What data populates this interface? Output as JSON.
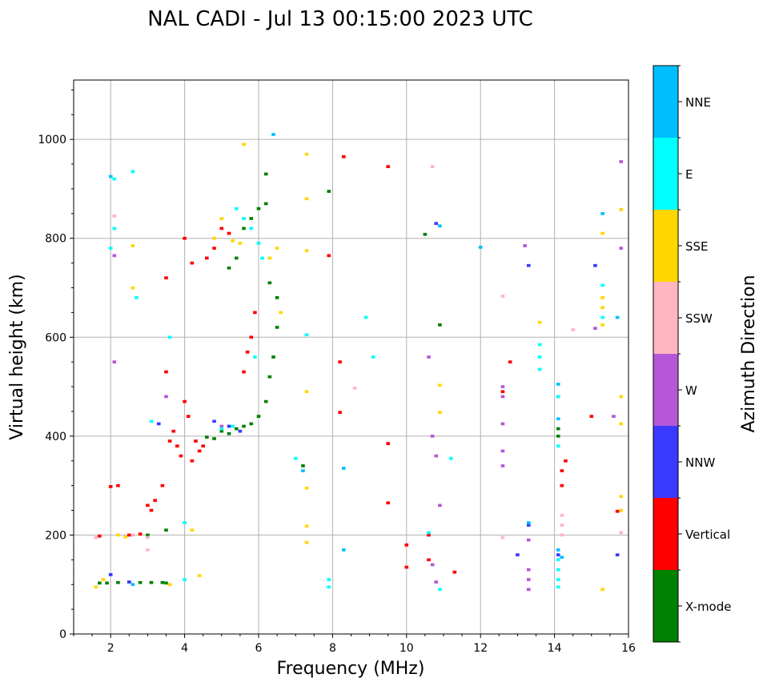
{
  "chart_data": {
    "type": "scatter",
    "title": "NAL CADI - Jul 13 00:15:00 2023 UTC",
    "xlabel": "Frequency (MHz)",
    "ylabel": "Virtual height (km)",
    "xlim": [
      1,
      16
    ],
    "ylim": [
      0,
      1120
    ],
    "xticks": [
      2,
      4,
      6,
      8,
      10,
      12,
      14,
      16
    ],
    "yticks": [
      0,
      200,
      400,
      600,
      800,
      1000
    ],
    "grid": true,
    "colorbar": {
      "title": "Azimuth Direction",
      "categories": [
        {
          "name": "X-mode",
          "color": "#008000"
        },
        {
          "name": "Vertical",
          "color": "#ff0000"
        },
        {
          "name": "NNW",
          "color": "#3a3aff"
        },
        {
          "name": "W",
          "color": "#b557d6"
        },
        {
          "name": "SSW",
          "color": "#ffb6c1"
        },
        {
          "name": "SSE",
          "color": "#ffd700"
        },
        {
          "name": "E",
          "color": "#00ffff"
        },
        {
          "name": "NNE",
          "color": "#00bfff"
        }
      ]
    },
    "series": [
      {
        "name": "X-mode",
        "points": [
          [
            1.7,
            103
          ],
          [
            1.9,
            103
          ],
          [
            2.2,
            104
          ],
          [
            2.5,
            105
          ],
          [
            2.8,
            104
          ],
          [
            3.1,
            104
          ],
          [
            3.4,
            104
          ],
          [
            3.5,
            103
          ],
          [
            3.0,
            200
          ],
          [
            3.5,
            210
          ],
          [
            4.6,
            398
          ],
          [
            4.8,
            395
          ],
          [
            5.0,
            410
          ],
          [
            5.2,
            405
          ],
          [
            5.4,
            415
          ],
          [
            5.6,
            420
          ],
          [
            5.8,
            425
          ],
          [
            6.0,
            440
          ],
          [
            6.2,
            470
          ],
          [
            6.3,
            520
          ],
          [
            6.4,
            560
          ],
          [
            6.5,
            620
          ],
          [
            6.5,
            680
          ],
          [
            6.3,
            710
          ],
          [
            6.2,
            870
          ],
          [
            6.2,
            930
          ],
          [
            6.0,
            860
          ],
          [
            5.8,
            840
          ],
          [
            5.6,
            820
          ],
          [
            5.4,
            760
          ],
          [
            5.2,
            740
          ],
          [
            7.2,
            340
          ],
          [
            7.9,
            895
          ],
          [
            10.5,
            808
          ],
          [
            10.9,
            625
          ],
          [
            14.1,
            400
          ],
          [
            14.1,
            415
          ]
        ]
      },
      {
        "name": "Vertical",
        "points": [
          [
            1.7,
            198
          ],
          [
            2.0,
            298
          ],
          [
            2.2,
            300
          ],
          [
            2.5,
            200
          ],
          [
            2.8,
            202
          ],
          [
            3.0,
            260
          ],
          [
            3.1,
            250
          ],
          [
            3.2,
            270
          ],
          [
            3.4,
            300
          ],
          [
            3.5,
            530
          ],
          [
            3.5,
            720
          ],
          [
            3.6,
            390
          ],
          [
            3.7,
            410
          ],
          [
            3.8,
            380
          ],
          [
            3.9,
            360
          ],
          [
            4.0,
            470
          ],
          [
            4.1,
            440
          ],
          [
            4.2,
            350
          ],
          [
            4.3,
            390
          ],
          [
            4.4,
            370
          ],
          [
            4.5,
            380
          ],
          [
            4.6,
            760
          ],
          [
            4.8,
            780
          ],
          [
            4.2,
            750
          ],
          [
            4.0,
            800
          ],
          [
            5.0,
            820
          ],
          [
            5.2,
            810
          ],
          [
            5.6,
            530
          ],
          [
            5.7,
            570
          ],
          [
            5.8,
            600
          ],
          [
            5.9,
            650
          ],
          [
            8.2,
            550
          ],
          [
            8.2,
            448
          ],
          [
            8.3,
            965
          ],
          [
            7.9,
            765
          ],
          [
            9.5,
            945
          ],
          [
            9.5,
            265
          ],
          [
            9.5,
            385
          ],
          [
            10.0,
            180
          ],
          [
            10.0,
            135
          ],
          [
            10.6,
            200
          ],
          [
            10.6,
            150
          ],
          [
            11.3,
            125
          ],
          [
            12.8,
            550
          ],
          [
            12.6,
            490
          ],
          [
            14.1,
            480
          ],
          [
            14.2,
            300
          ],
          [
            14.2,
            330
          ],
          [
            14.3,
            350
          ],
          [
            15.0,
            440
          ],
          [
            15.7,
            248
          ]
        ]
      },
      {
        "name": "NNW",
        "points": [
          [
            2.0,
            120
          ],
          [
            2.5,
            105
          ],
          [
            3.3,
            425
          ],
          [
            4.8,
            430
          ],
          [
            5.2,
            420
          ],
          [
            5.5,
            410
          ],
          [
            10.8,
            830
          ],
          [
            13.3,
            745
          ],
          [
            13.0,
            160
          ],
          [
            13.3,
            220
          ],
          [
            14.1,
            160
          ],
          [
            15.7,
            160
          ],
          [
            15.1,
            745
          ]
        ]
      },
      {
        "name": "W",
        "points": [
          [
            2.1,
            765
          ],
          [
            2.1,
            550
          ],
          [
            3.5,
            480
          ],
          [
            5.0,
            420
          ],
          [
            10.6,
            560
          ],
          [
            10.7,
            400
          ],
          [
            10.8,
            360
          ],
          [
            10.9,
            260
          ],
          [
            10.7,
            140
          ],
          [
            10.8,
            105
          ],
          [
            12.6,
            500
          ],
          [
            12.6,
            480
          ],
          [
            12.6,
            370
          ],
          [
            12.6,
            340
          ],
          [
            12.6,
            425
          ],
          [
            13.2,
            785
          ],
          [
            13.3,
            190
          ],
          [
            13.3,
            130
          ],
          [
            13.3,
            110
          ],
          [
            13.3,
            90
          ],
          [
            15.1,
            618
          ],
          [
            15.6,
            440
          ],
          [
            15.8,
            955
          ],
          [
            15.8,
            780
          ]
        ]
      },
      {
        "name": "SSW",
        "points": [
          [
            1.6,
            195
          ],
          [
            2.1,
            845
          ],
          [
            2.1,
            820
          ],
          [
            2.6,
            200
          ],
          [
            3.0,
            195
          ],
          [
            3.0,
            170
          ],
          [
            8.6,
            497
          ],
          [
            10.7,
            945
          ],
          [
            12.6,
            683
          ],
          [
            12.6,
            195
          ],
          [
            14.2,
            240
          ],
          [
            14.2,
            220
          ],
          [
            14.2,
            200
          ],
          [
            14.5,
            615
          ],
          [
            15.8,
            205
          ]
        ]
      },
      {
        "name": "SSE",
        "points": [
          [
            1.6,
            95
          ],
          [
            1.8,
            110
          ],
          [
            2.2,
            200
          ],
          [
            2.4,
            196
          ],
          [
            2.6,
            785
          ],
          [
            2.6,
            700
          ],
          [
            3.6,
            100
          ],
          [
            4.2,
            210
          ],
          [
            4.4,
            118
          ],
          [
            4.8,
            800
          ],
          [
            5.0,
            840
          ],
          [
            5.3,
            795
          ],
          [
            5.5,
            790
          ],
          [
            5.6,
            990
          ],
          [
            6.3,
            760
          ],
          [
            6.5,
            780
          ],
          [
            6.6,
            650
          ],
          [
            7.3,
            970
          ],
          [
            7.3,
            880
          ],
          [
            7.3,
            775
          ],
          [
            7.3,
            490
          ],
          [
            7.3,
            295
          ],
          [
            7.3,
            218
          ],
          [
            7.3,
            185
          ],
          [
            10.9,
            503
          ],
          [
            10.9,
            448
          ],
          [
            13.6,
            630
          ],
          [
            15.3,
            810
          ],
          [
            15.3,
            680
          ],
          [
            15.3,
            660
          ],
          [
            15.3,
            625
          ],
          [
            15.3,
            90
          ],
          [
            15.8,
            858
          ],
          [
            15.8,
            480
          ],
          [
            15.8,
            425
          ],
          [
            15.8,
            278
          ],
          [
            15.8,
            250
          ]
        ]
      },
      {
        "name": "E",
        "points": [
          [
            2.1,
            920
          ],
          [
            2.6,
            935
          ],
          [
            2.7,
            680
          ],
          [
            2.1,
            820
          ],
          [
            2.0,
            780
          ],
          [
            3.1,
            430
          ],
          [
            3.6,
            600
          ],
          [
            4.0,
            225
          ],
          [
            4.0,
            110
          ],
          [
            5.4,
            860
          ],
          [
            5.6,
            840
          ],
          [
            5.8,
            820
          ],
          [
            6.0,
            790
          ],
          [
            6.1,
            760
          ],
          [
            5.9,
            560
          ],
          [
            5.0,
            415
          ],
          [
            5.3,
            420
          ],
          [
            7.3,
            605
          ],
          [
            7.0,
            355
          ],
          [
            7.9,
            110
          ],
          [
            7.9,
            95
          ],
          [
            8.9,
            640
          ],
          [
            9.1,
            560
          ],
          [
            10.6,
            205
          ],
          [
            10.9,
            90
          ],
          [
            11.2,
            355
          ],
          [
            13.6,
            585
          ],
          [
            13.6,
            560
          ],
          [
            13.6,
            535
          ],
          [
            14.1,
            480
          ],
          [
            14.1,
            380
          ],
          [
            14.1,
            150
          ],
          [
            14.1,
            130
          ],
          [
            14.1,
            110
          ],
          [
            14.1,
            95
          ],
          [
            15.3,
            705
          ],
          [
            15.3,
            640
          ]
        ]
      },
      {
        "name": "NNE",
        "points": [
          [
            2.0,
            925
          ],
          [
            2.6,
            100
          ],
          [
            6.4,
            1010
          ],
          [
            7.2,
            330
          ],
          [
            8.3,
            335
          ],
          [
            8.3,
            170
          ],
          [
            10.9,
            825
          ],
          [
            12.0,
            782
          ],
          [
            13.3,
            225
          ],
          [
            14.1,
            505
          ],
          [
            14.1,
            435
          ],
          [
            14.1,
            170
          ],
          [
            14.2,
            155
          ],
          [
            15.3,
            850
          ],
          [
            15.7,
            640
          ]
        ]
      }
    ]
  }
}
